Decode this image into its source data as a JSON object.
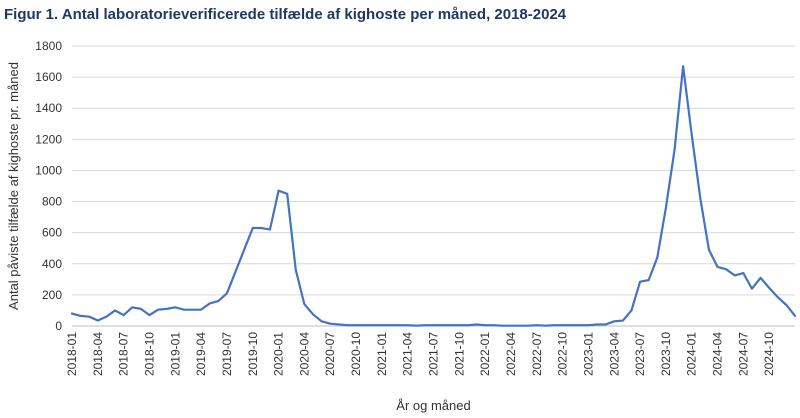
{
  "chart_data": {
    "type": "line",
    "title": "Figur 1. Antal laboratorieverificerede tilfælde af kighoste per måned, 2018-2024",
    "xlabel": "År og måned",
    "ylabel": "Antal påviste tilfælde af kighoste pr. måned",
    "ylim": [
      0,
      1800
    ],
    "yticks": [
      0,
      200,
      400,
      600,
      800,
      1000,
      1200,
      1400,
      1600,
      1800
    ],
    "grid": true,
    "legend": "none",
    "line_color": "#4472c4",
    "x_tick_labels": [
      "2018-01",
      "2018-04",
      "2018-07",
      "2018-10",
      "2019-01",
      "2019-04",
      "2019-07",
      "2019-10",
      "2020-01",
      "2020-04",
      "2020-07",
      "2020-10",
      "2021-01",
      "2021-04",
      "2021-07",
      "2021-10",
      "2022-01",
      "2022-04",
      "2022-07",
      "2022-10",
      "2023-01",
      "2023-04",
      "2023-07",
      "2023-10",
      "2024-01",
      "2024-04",
      "2024-07",
      "2024-10"
    ],
    "x_start": "2018-01",
    "values": [
      80,
      65,
      60,
      35,
      60,
      100,
      70,
      120,
      110,
      70,
      105,
      110,
      120,
      105,
      105,
      105,
      145,
      160,
      210,
      350,
      490,
      630,
      630,
      620,
      870,
      850,
      360,
      140,
      75,
      30,
      15,
      10,
      5,
      5,
      5,
      5,
      5,
      5,
      5,
      5,
      2,
      5,
      5,
      5,
      5,
      5,
      5,
      10,
      5,
      5,
      2,
      2,
      2,
      2,
      5,
      2,
      5,
      5,
      5,
      5,
      5,
      10,
      10,
      30,
      35,
      100,
      285,
      295,
      440,
      760,
      1130,
      1670,
      1230,
      820,
      490,
      380,
      365,
      325,
      340,
      240,
      310,
      245,
      185,
      135,
      65
    ]
  }
}
